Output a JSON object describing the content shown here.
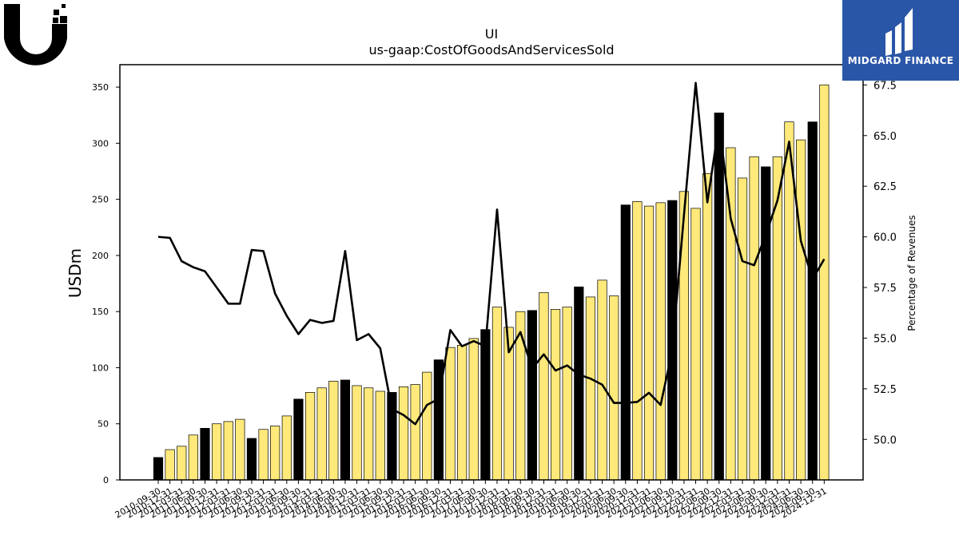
{
  "chart_data": {
    "type": "bar+line",
    "title": "UI",
    "subtitle": "us-gaap:CostOfGoodsAndServicesSold",
    "ylabel_left": "USDm",
    "ylabel_right": "Percentage of Revenues",
    "ylim_left": [
      0,
      370
    ],
    "ylim_right": [
      48,
      68.5
    ],
    "yticks_left": [
      0,
      50,
      100,
      150,
      200,
      250,
      300,
      350
    ],
    "yticks_right": [
      50.0,
      52.5,
      55.0,
      57.5,
      60.0,
      62.5,
      65.0,
      67.5
    ],
    "categories": [
      "2010-09-30",
      "2010-12-31",
      "2011-03-31",
      "2011-06-30",
      "2011-09-30",
      "2011-12-31",
      "2012-03-31",
      "2012-06-30",
      "2012-09-30",
      "2012-12-31",
      "2013-03-31",
      "2013-06-30",
      "2013-09-30",
      "2013-12-31",
      "2014-03-31",
      "2014-06-30",
      "2014-09-30",
      "2014-12-31",
      "2015-03-31",
      "2015-06-30",
      "2015-09-30",
      "2015-12-31",
      "2016-03-31",
      "2016-06-30",
      "2016-09-30",
      "2016-12-31",
      "2017-03-31",
      "2017-06-30",
      "2017-09-30",
      "2017-12-31",
      "2018-03-31",
      "2018-06-30",
      "2018-09-30",
      "2018-12-31",
      "2019-03-31",
      "2019-06-30",
      "2019-09-30",
      "2019-12-31",
      "2020-03-31",
      "2020-06-30",
      "2020-09-30",
      "2020-12-31",
      "2021-03-31",
      "2021-06-30",
      "2021-09-30",
      "2021-12-31",
      "2022-03-31",
      "2022-06-30",
      "2022-09-30",
      "2022-12-31",
      "2023-03-31",
      "2023-06-30",
      "2023-09-30",
      "2023-12-31",
      "2024-03-31",
      "2024-06-30",
      "2024-09-30",
      "2024-12-31"
    ],
    "bar_series": {
      "name": "us-gaap:CostOfGoodsAndServicesSold",
      "values": [
        20,
        27,
        30,
        40,
        46,
        50,
        52,
        54,
        37,
        45,
        48,
        57,
        72,
        78,
        82,
        88,
        89,
        84,
        82,
        79,
        78,
        83,
        85,
        96,
        107,
        118,
        120,
        126,
        134,
        154,
        136,
        150,
        151,
        167,
        152,
        154,
        172,
        163,
        178,
        164,
        245,
        248,
        244,
        247,
        249,
        257,
        242,
        273,
        327,
        296,
        269,
        288,
        279,
        288,
        319,
        303,
        319,
        352
      ],
      "colors": {
        "highlight": "#000000",
        "normal": "#ffe97a"
      },
      "highlight_quarters": "09-30"
    },
    "line_series": {
      "name": "Percentage of Revenues",
      "values": [
        60.0,
        59.95,
        58.8,
        58.5,
        58.3,
        57.5,
        56.7,
        56.7,
        59.35,
        59.3,
        57.2,
        56.1,
        55.2,
        55.9,
        55.75,
        55.85,
        59.3,
        54.9,
        55.2,
        54.5,
        51.5,
        51.2,
        50.75,
        51.7,
        52.0,
        55.4,
        54.6,
        54.85,
        54.6,
        61.35,
        54.3,
        55.3,
        53.5,
        54.2,
        53.4,
        53.65,
        53.2,
        53.0,
        52.7,
        51.8,
        51.8,
        51.85,
        52.3,
        51.7,
        54.4,
        61.1,
        67.6,
        61.7,
        65.6,
        60.9,
        58.8,
        58.6,
        60.1,
        61.8,
        64.7,
        59.8,
        57.9,
        58.9
      ],
      "color": "#000000"
    },
    "grid": false,
    "legend": "none"
  },
  "logos": {
    "right_brand": "MIDGARD FINANCE"
  }
}
